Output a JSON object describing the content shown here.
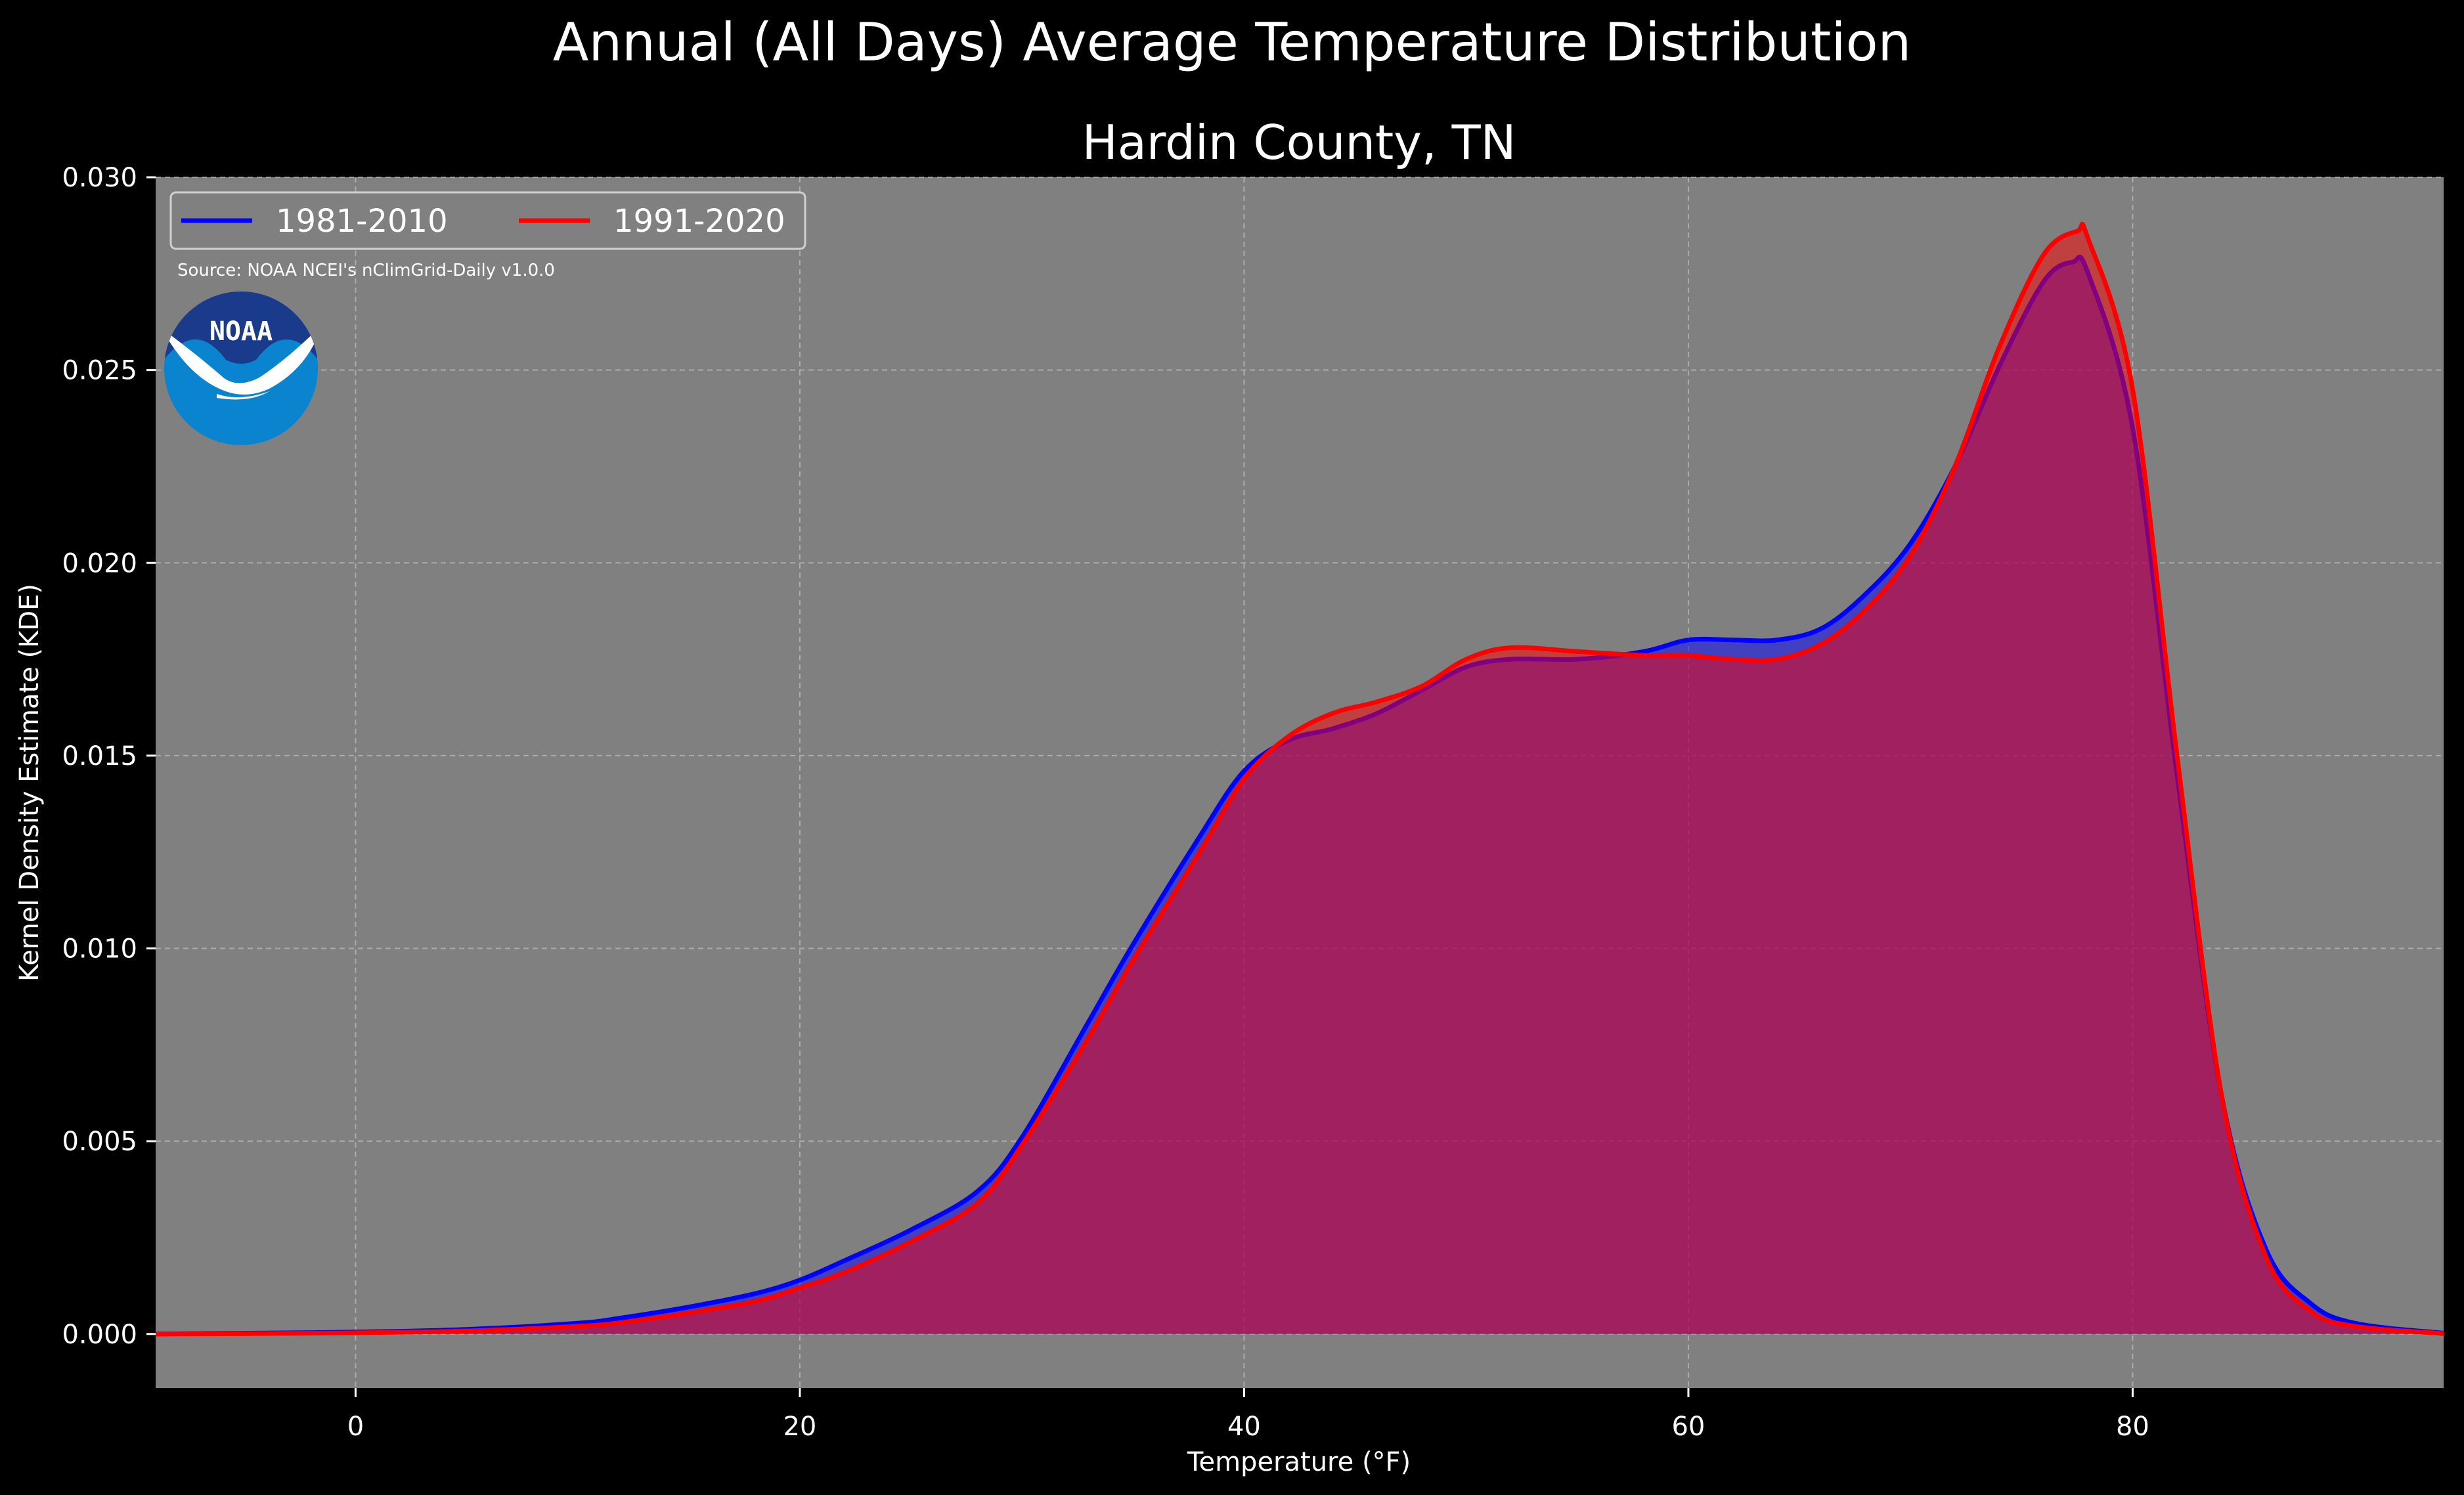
{
  "colors": {
    "background": "#000000",
    "plot_background": "#808080",
    "series_1981_2010": "#0000ff",
    "series_1991_2020": "#ff0000",
    "noaa_dark_blue": "#1a3a8c",
    "noaa_light_blue": "#0a84cf"
  },
  "logo": {
    "text": "NOAA",
    "icon": "noaa-logo-icon"
  },
  "chart_data": {
    "type": "area",
    "title": "Annual (All Days) Average Temperature Distribution",
    "subtitle": "Hardin County, TN",
    "xlabel": "Temperature ($^\\circ$F)",
    "xlabel_display": "Temperature (°F)",
    "ylabel": "Kernel Density Estimate (KDE)",
    "source": "Source: NOAA NCEI's nClimGrid-Daily v1.0.0",
    "xlim": [
      -9,
      94
    ],
    "ylim": [
      -0.0014,
      0.03
    ],
    "xticks": [
      0,
      20,
      40,
      60,
      80
    ],
    "xtick_labels": [
      "0",
      "20",
      "40",
      "60",
      "80"
    ],
    "yticks": [
      0.0,
      0.005,
      0.01,
      0.015,
      0.02,
      0.025,
      0.03
    ],
    "ytick_labels": [
      "0.000",
      "0.005",
      "0.010",
      "0.015",
      "0.020",
      "0.025",
      "0.030"
    ],
    "grid": true,
    "legend_placement": "top-left",
    "series": [
      {
        "name": "1981-2010",
        "color": "#0000ff",
        "x": [
          -9,
          -5,
          0,
          5,
          10,
          12,
          15,
          18,
          20,
          22,
          25,
          28,
          30,
          33,
          35,
          38,
          40,
          42,
          44,
          46,
          48,
          50,
          52,
          55,
          58,
          60,
          62,
          64,
          66,
          68,
          70,
          72,
          74,
          76,
          77.3,
          78,
          80,
          82,
          84,
          86,
          88,
          90,
          94
        ],
        "values": [
          0.0,
          2e-05,
          5e-05,
          0.00012,
          0.00028,
          0.00042,
          0.0007,
          0.00105,
          0.0014,
          0.0019,
          0.0027,
          0.0037,
          0.0051,
          0.0081,
          0.0101,
          0.0129,
          0.0146,
          0.0154,
          0.0157,
          0.0161,
          0.0167,
          0.0173,
          0.0175,
          0.0175,
          0.0177,
          0.018,
          0.018,
          0.018,
          0.0183,
          0.0192,
          0.0205,
          0.0225,
          0.0251,
          0.0273,
          0.0278,
          0.0275,
          0.0235,
          0.0145,
          0.0062,
          0.0022,
          0.0008,
          0.00028,
          2e-05
        ]
      },
      {
        "name": "1991-2020",
        "color": "#ff0000",
        "x": [
          -9,
          -5,
          0,
          5,
          10,
          12,
          15,
          18,
          20,
          22,
          25,
          28,
          30,
          33,
          35,
          38,
          40,
          42,
          44,
          46,
          48,
          50,
          52,
          55,
          58,
          60,
          62,
          64,
          66,
          68,
          70,
          72,
          74,
          76,
          77.5,
          78,
          80,
          82,
          84,
          86,
          88,
          90,
          94
        ],
        "values": [
          0.0,
          1e-05,
          3e-05,
          8e-05,
          0.0002,
          0.0003,
          0.00055,
          0.00085,
          0.0012,
          0.0016,
          0.0024,
          0.0034,
          0.0049,
          0.0077,
          0.0097,
          0.0125,
          0.0144,
          0.0155,
          0.0161,
          0.0164,
          0.0168,
          0.0175,
          0.0178,
          0.0177,
          0.0176,
          0.0176,
          0.0175,
          0.0175,
          0.0179,
          0.0188,
          0.0202,
          0.0225,
          0.0256,
          0.028,
          0.0286,
          0.0284,
          0.0245,
          0.015,
          0.0062,
          0.002,
          0.0006,
          0.0002,
          1e-05
        ]
      }
    ]
  }
}
